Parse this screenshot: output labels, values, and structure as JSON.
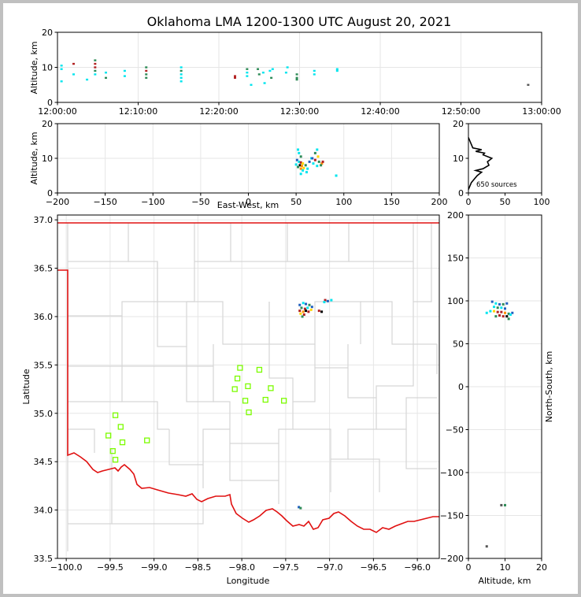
{
  "title": "Oklahoma LMA 1200-1300 UTC August 20, 2021",
  "colors": {
    "border": "#d6d6d6",
    "state_line": "#e01010",
    "stations": "#7cfc00",
    "frame": "#c0c0c0"
  },
  "chart_data": [
    {
      "id": "time_height",
      "type": "scatter",
      "xlabel": "",
      "ylabel": "Altitude, km",
      "xlim": [
        "12:00:00",
        "13:00:00"
      ],
      "ylim": [
        0,
        20
      ],
      "xticks": [
        "12:00:00",
        "12:10:00",
        "12:20:00",
        "12:30:00",
        "12:40:00",
        "12:50:00",
        "13:00:00"
      ],
      "yticks": [
        "0",
        "10",
        "20"
      ],
      "grid": true,
      "points": [
        {
          "t": "12:00:30",
          "alt": 10.5,
          "c": "#00e5ee"
        },
        {
          "t": "12:00:30",
          "alt": 9.5,
          "c": "#00e5ee"
        },
        {
          "t": "12:00:30",
          "alt": 6.0,
          "c": "#00e5ee"
        },
        {
          "t": "12:02:00",
          "alt": 11.0,
          "c": "#b22222"
        },
        {
          "t": "12:02:00",
          "alt": 8.0,
          "c": "#00e5ee"
        },
        {
          "t": "12:03:40",
          "alt": 6.5,
          "c": "#00e5ee"
        },
        {
          "t": "12:04:40",
          "alt": 12.0,
          "c": "#2e8b57"
        },
        {
          "t": "12:04:40",
          "alt": 11.0,
          "c": "#b22222"
        },
        {
          "t": "12:04:40",
          "alt": 10.0,
          "c": "#b22222"
        },
        {
          "t": "12:04:40",
          "alt": 9.0,
          "c": "#2e8b57"
        },
        {
          "t": "12:04:40",
          "alt": 8.0,
          "c": "#00e5ee"
        },
        {
          "t": "12:06:00",
          "alt": 8.5,
          "c": "#00e5ee"
        },
        {
          "t": "12:06:00",
          "alt": 7.0,
          "c": "#2e8b57"
        },
        {
          "t": "12:08:20",
          "alt": 9.0,
          "c": "#00e5ee"
        },
        {
          "t": "12:08:20",
          "alt": 7.5,
          "c": "#00e5ee"
        },
        {
          "t": "12:11:00",
          "alt": 10.0,
          "c": "#2e8b57"
        },
        {
          "t": "12:11:00",
          "alt": 9.0,
          "c": "#b22222"
        },
        {
          "t": "12:11:00",
          "alt": 8.0,
          "c": "#2e8b57"
        },
        {
          "t": "12:11:00",
          "alt": 7.0,
          "c": "#2e8b57"
        },
        {
          "t": "12:15:20",
          "alt": 10.0,
          "c": "#00e5ee"
        },
        {
          "t": "12:15:20",
          "alt": 9.0,
          "c": "#2e8b57"
        },
        {
          "t": "12:15:20",
          "alt": 8.0,
          "c": "#00e5ee"
        },
        {
          "t": "12:15:20",
          "alt": 7.0,
          "c": "#00e5ee"
        },
        {
          "t": "12:15:20",
          "alt": 6.0,
          "c": "#00e5ee"
        },
        {
          "t": "12:22:00",
          "alt": 7.5,
          "c": "#b22222"
        },
        {
          "t": "12:22:00",
          "alt": 7.0,
          "c": "#b22222"
        },
        {
          "t": "12:23:30",
          "alt": 9.5,
          "c": "#2e8b57"
        },
        {
          "t": "12:23:30",
          "alt": 8.5,
          "c": "#00e5ee"
        },
        {
          "t": "12:23:30",
          "alt": 7.5,
          "c": "#00e5ee"
        },
        {
          "t": "12:24:00",
          "alt": 5.0,
          "c": "#00e5ee"
        },
        {
          "t": "12:24:50",
          "alt": 9.5,
          "c": "#2e8b57"
        },
        {
          "t": "12:25:00",
          "alt": 8.0,
          "c": "#2e8b57"
        },
        {
          "t": "12:25:30",
          "alt": 8.5,
          "c": "#00e5ee"
        },
        {
          "t": "12:25:40",
          "alt": 5.5,
          "c": "#00e5ee"
        },
        {
          "t": "12:26:20",
          "alt": 9.0,
          "c": "#00e5ee"
        },
        {
          "t": "12:26:30",
          "alt": 7.0,
          "c": "#2e8b57"
        },
        {
          "t": "12:26:40",
          "alt": 9.5,
          "c": "#00e5ee"
        },
        {
          "t": "12:28:20",
          "alt": 8.5,
          "c": "#00e5ee"
        },
        {
          "t": "12:28:30",
          "alt": 10.0,
          "c": "#00e5ee"
        },
        {
          "t": "12:29:40",
          "alt": 8.0,
          "c": "#2e8b57"
        },
        {
          "t": "12:29:40",
          "alt": 7.0,
          "c": "#2e8b57"
        },
        {
          "t": "12:29:40",
          "alt": 6.5,
          "c": "#2e8b57"
        },
        {
          "t": "12:31:50",
          "alt": 9.0,
          "c": "#00e5ee"
        },
        {
          "t": "12:31:50",
          "alt": 8.0,
          "c": "#00e5ee"
        },
        {
          "t": "12:34:40",
          "alt": 9.5,
          "c": "#00e5ee"
        },
        {
          "t": "12:34:40",
          "alt": 9.0,
          "c": "#00e5ee"
        },
        {
          "t": "12:58:20",
          "alt": 5.0,
          "c": "#555555"
        }
      ]
    },
    {
      "id": "ew_altitude",
      "type": "scatter",
      "xlabel": "East-West, km",
      "ylabel": "Altitude, km",
      "xlim": [
        -200,
        200
      ],
      "ylim": [
        0,
        20
      ],
      "xticks": [
        "−200",
        "−150",
        "−100",
        "−50",
        "0",
        "50",
        "100",
        "150",
        "200"
      ],
      "yticks": [
        "0",
        "10",
        "20"
      ],
      "grid": true,
      "points": [
        {
          "x": 52,
          "y": 12.5,
          "c": "#00e5ee"
        },
        {
          "x": 53,
          "y": 11.5,
          "c": "#00e5ee"
        },
        {
          "x": 55,
          "y": 10.5,
          "c": "#2e8b57"
        },
        {
          "x": 51,
          "y": 9.5,
          "c": "#1f5fbf"
        },
        {
          "x": 53,
          "y": 9.0,
          "c": "#00e5ee"
        },
        {
          "x": 55,
          "y": 8.8,
          "c": "#b22222"
        },
        {
          "x": 57,
          "y": 8.5,
          "c": "#ffd700"
        },
        {
          "x": 54,
          "y": 8.0,
          "c": "#000000"
        },
        {
          "x": 56,
          "y": 7.8,
          "c": "#ff8c00"
        },
        {
          "x": 58,
          "y": 7.2,
          "c": "#ffd700"
        },
        {
          "x": 55,
          "y": 7.0,
          "c": "#ff8c00"
        },
        {
          "x": 52,
          "y": 7.5,
          "c": "#2e8b57"
        },
        {
          "x": 50,
          "y": 8.2,
          "c": "#00e5ee"
        },
        {
          "x": 60,
          "y": 8.0,
          "c": "#2e8b57"
        },
        {
          "x": 57,
          "y": 6.5,
          "c": "#00e5ee"
        },
        {
          "x": 62,
          "y": 7.0,
          "c": "#00e5ee"
        },
        {
          "x": 64,
          "y": 9.0,
          "c": "#1f5fbf"
        },
        {
          "x": 66,
          "y": 10.0,
          "c": "#00e5ee"
        },
        {
          "x": 70,
          "y": 11.5,
          "c": "#2e8b57"
        },
        {
          "x": 72,
          "y": 12.5,
          "c": "#00e5ee"
        },
        {
          "x": 73,
          "y": 10.5,
          "c": "#ffd700"
        },
        {
          "x": 70,
          "y": 9.5,
          "c": "#b22222"
        },
        {
          "x": 74,
          "y": 9.0,
          "c": "#2e8b57"
        },
        {
          "x": 77,
          "y": 8.5,
          "c": "#ff8c00"
        },
        {
          "x": 78,
          "y": 9.0,
          "c": "#b22222"
        },
        {
          "x": 76,
          "y": 8.0,
          "c": "#2e8b57"
        },
        {
          "x": 72,
          "y": 7.8,
          "c": "#00e5ee"
        },
        {
          "x": 68,
          "y": 8.5,
          "c": "#00e5ee"
        },
        {
          "x": 67,
          "y": 10.0,
          "c": "#1f5fbf"
        },
        {
          "x": 61,
          "y": 6.0,
          "c": "#00e5ee"
        },
        {
          "x": 92,
          "y": 5.0,
          "c": "#00e5ee"
        },
        {
          "x": 55,
          "y": 5.5,
          "c": "#00e5ee"
        }
      ]
    },
    {
      "id": "altitude_histogram",
      "type": "line",
      "xlabel": "",
      "ylabel": "",
      "xlim": [
        0,
        100
      ],
      "ylim": [
        0,
        20
      ],
      "xticks": [
        "0",
        "50",
        "100"
      ],
      "yticks": [
        "0",
        "10",
        "20"
      ],
      "annotation": "650 sources",
      "x": [
        0,
        2,
        4,
        8,
        12,
        18,
        10,
        20,
        28,
        26,
        32,
        20,
        22,
        10,
        18,
        6,
        4,
        2,
        0
      ],
      "y": [
        1,
        2,
        3,
        4,
        5,
        6,
        6.5,
        7,
        8,
        9,
        10,
        11,
        11.5,
        12,
        12.5,
        13,
        14,
        15,
        16
      ]
    },
    {
      "id": "plan_view",
      "type": "scatter",
      "xlabel": "Longitude",
      "ylabel": "Latitude",
      "xlim": [
        -100.1,
        -95.75
      ],
      "ylim": [
        33.5,
        37.05
      ],
      "xticks": [
        "−100.0",
        "−99.5",
        "−99.0",
        "−98.5",
        "−98.0",
        "−97.5",
        "−97.0",
        "−96.5",
        "−96.0"
      ],
      "yticks": [
        "33.5",
        "34.0",
        "34.5",
        "35.0",
        "35.5",
        "36.0",
        "36.5",
        "37.0"
      ],
      "grid": true,
      "stations": [
        {
          "lon": -98.02,
          "lat": 35.47
        },
        {
          "lon": -97.8,
          "lat": 35.45
        },
        {
          "lon": -98.05,
          "lat": 35.36
        },
        {
          "lon": -97.93,
          "lat": 35.28
        },
        {
          "lon": -97.67,
          "lat": 35.26
        },
        {
          "lon": -98.08,
          "lat": 35.25
        },
        {
          "lon": -97.96,
          "lat": 35.13
        },
        {
          "lon": -97.73,
          "lat": 35.14
        },
        {
          "lon": -97.52,
          "lat": 35.13
        },
        {
          "lon": -97.92,
          "lat": 35.01
        },
        {
          "lon": -99.44,
          "lat": 34.98
        },
        {
          "lon": -99.38,
          "lat": 34.86
        },
        {
          "lon": -99.52,
          "lat": 34.77
        },
        {
          "lon": -99.08,
          "lat": 34.72
        },
        {
          "lon": -99.36,
          "lat": 34.7
        },
        {
          "lon": -99.47,
          "lat": 34.61
        },
        {
          "lon": -99.44,
          "lat": 34.52
        }
      ],
      "sources": [
        {
          "lon": -97.34,
          "lat": 36.12,
          "c": "#1f5fbf"
        },
        {
          "lon": -97.3,
          "lat": 36.14,
          "c": "#00e5ee"
        },
        {
          "lon": -97.27,
          "lat": 36.13,
          "c": "#1f5fbf"
        },
        {
          "lon": -97.23,
          "lat": 36.12,
          "c": "#2e8b57"
        },
        {
          "lon": -97.2,
          "lat": 36.1,
          "c": "#1f5fbf"
        },
        {
          "lon": -97.32,
          "lat": 36.09,
          "c": "#2e8b57"
        },
        {
          "lon": -97.28,
          "lat": 36.08,
          "c": "#b22222"
        },
        {
          "lon": -97.25,
          "lat": 36.09,
          "c": "#00e5ee"
        },
        {
          "lon": -97.21,
          "lat": 36.07,
          "c": "#ffd700"
        },
        {
          "lon": -97.34,
          "lat": 36.06,
          "c": "#b22222"
        },
        {
          "lon": -97.3,
          "lat": 36.05,
          "c": "#ff8c00"
        },
        {
          "lon": -97.27,
          "lat": 36.06,
          "c": "#000000"
        },
        {
          "lon": -97.24,
          "lat": 36.05,
          "c": "#b22222"
        },
        {
          "lon": -97.33,
          "lat": 36.03,
          "c": "#ffd700"
        },
        {
          "lon": -97.29,
          "lat": 36.02,
          "c": "#b22222"
        },
        {
          "lon": -97.31,
          "lat": 36.0,
          "c": "#2e8b57"
        },
        {
          "lon": -97.12,
          "lat": 36.06,
          "c": "#b22222"
        },
        {
          "lon": -97.09,
          "lat": 36.05,
          "c": "#000000"
        },
        {
          "lon": -97.05,
          "lat": 36.17,
          "c": "#b22222"
        },
        {
          "lon": -97.02,
          "lat": 36.16,
          "c": "#1f5fbf"
        },
        {
          "lon": -96.98,
          "lat": 36.17,
          "c": "#00e5ee"
        },
        {
          "lon": -97.06,
          "lat": 36.15,
          "c": "#00e5ee"
        },
        {
          "lon": -97.35,
          "lat": 34.03,
          "c": "#1f5fbf"
        },
        {
          "lon": -97.33,
          "lat": 34.02,
          "c": "#2e8b57"
        }
      ]
    },
    {
      "id": "ns_altitude",
      "type": "scatter",
      "xlabel": "Altitude, km",
      "ylabel": "North-South, km",
      "xlim": [
        0,
        20
      ],
      "ylim": [
        -200,
        200
      ],
      "xticks": [
        "0",
        "10",
        "20"
      ],
      "yticks": [
        "−200",
        "−150",
        "−100",
        "−50",
        "0",
        "50",
        "100",
        "150",
        "200"
      ],
      "grid": true,
      "points": [
        {
          "alt": 6.5,
          "ns": 99,
          "c": "#1f5fbf"
        },
        {
          "alt": 7.5,
          "ns": 97,
          "c": "#00e5ee"
        },
        {
          "alt": 8.5,
          "ns": 96,
          "c": "#1f5fbf"
        },
        {
          "alt": 9.5,
          "ns": 96,
          "c": "#2e8b57"
        },
        {
          "alt": 10.5,
          "ns": 97,
          "c": "#1f5fbf"
        },
        {
          "alt": 7.0,
          "ns": 93,
          "c": "#00e5ee"
        },
        {
          "alt": 8.0,
          "ns": 92,
          "c": "#2e8b57"
        },
        {
          "alt": 9.0,
          "ns": 92,
          "c": "#00e5ee"
        },
        {
          "alt": 10.0,
          "ns": 91,
          "c": "#1f5fbf"
        },
        {
          "alt": 6.0,
          "ns": 88,
          "c": "#00e5ee"
        },
        {
          "alt": 7.0,
          "ns": 88,
          "c": "#ffd700"
        },
        {
          "alt": 8.0,
          "ns": 87,
          "c": "#b22222"
        },
        {
          "alt": 9.0,
          "ns": 87,
          "c": "#b22222"
        },
        {
          "alt": 10.0,
          "ns": 86,
          "c": "#ff8c00"
        },
        {
          "alt": 11.0,
          "ns": 85,
          "c": "#2e8b57"
        },
        {
          "alt": 12.0,
          "ns": 86,
          "c": "#1f5fbf"
        },
        {
          "alt": 5.0,
          "ns": 86,
          "c": "#00e5ee"
        },
        {
          "alt": 8.5,
          "ns": 83,
          "c": "#b22222"
        },
        {
          "alt": 9.5,
          "ns": 82,
          "c": "#b22222"
        },
        {
          "alt": 10.5,
          "ns": 82,
          "c": "#000000"
        },
        {
          "alt": 11.5,
          "ns": 84,
          "c": "#00e5ee"
        },
        {
          "alt": 7.5,
          "ns": 82,
          "c": "#2e8b57"
        },
        {
          "alt": 11.0,
          "ns": 79,
          "c": "#2e8b57"
        },
        {
          "alt": 9.0,
          "ns": -138,
          "c": "#555555"
        },
        {
          "alt": 10.0,
          "ns": -138,
          "c": "#2e8b57"
        },
        {
          "alt": 5.0,
          "ns": -186,
          "c": "#555555"
        }
      ]
    }
  ]
}
